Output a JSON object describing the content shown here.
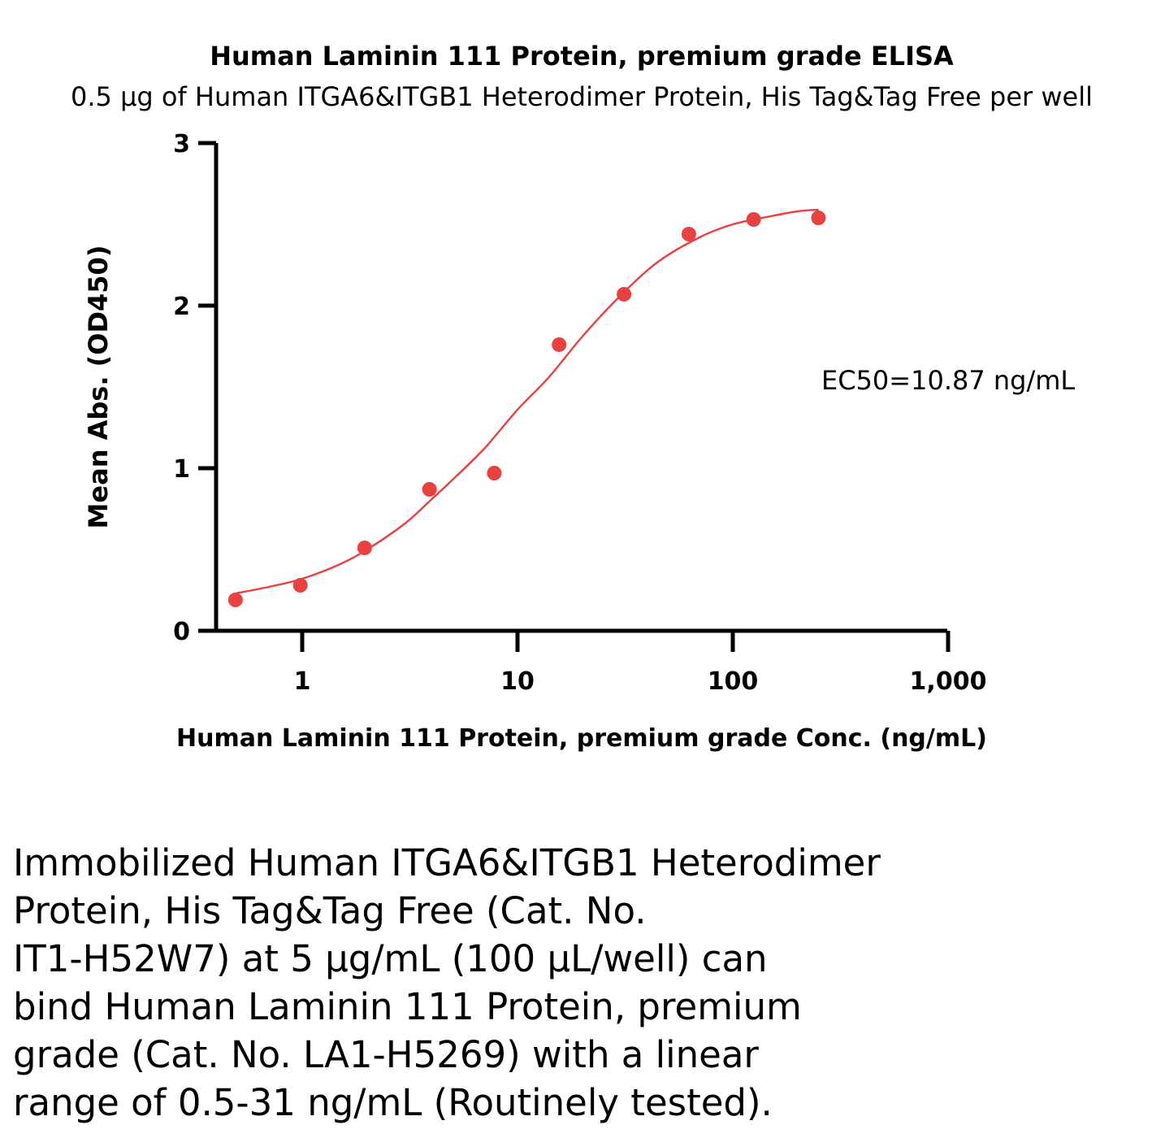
{
  "chart_data": {
    "type": "scatter",
    "title": "Human Laminin 111 Protein, premium grade ELISA",
    "subtitle": "0.5 µg of Human ITGA6&ITGB1 Heterodimer Protein, His Tag&Tag Free per well",
    "xlabel": "Human Laminin 111 Protein, premium grade Conc. (ng/mL)",
    "ylabel": "Mean Abs. (OD450)",
    "x_scale": "log",
    "xlim": [
      0.4,
      1000
    ],
    "ylim": [
      0,
      3
    ],
    "x_ticks": [
      1,
      10,
      100,
      1000
    ],
    "x_tick_labels": [
      "1",
      "10",
      "100",
      "1,000"
    ],
    "y_ticks": [
      0,
      1,
      2,
      3
    ],
    "y_tick_labels": [
      "0",
      "1",
      "2",
      "3"
    ],
    "grid": false,
    "series": [
      {
        "color": "#e8413f",
        "x": [
          0.49,
          0.98,
          1.95,
          3.9,
          7.8,
          15.6,
          31.25,
          62.5,
          125,
          250
        ],
        "y": [
          0.19,
          0.28,
          0.51,
          0.87,
          0.97,
          1.76,
          2.07,
          2.44,
          2.53,
          2.54
        ]
      }
    ],
    "fit_curve": {
      "color": "#e8413f",
      "x": [
        0.49,
        0.7,
        1,
        1.5,
        2,
        3,
        4,
        5,
        7,
        10,
        14,
        20,
        30,
        45,
        70,
        100,
        150,
        200,
        250
      ],
      "y": [
        0.23,
        0.27,
        0.32,
        0.41,
        0.5,
        0.66,
        0.81,
        0.93,
        1.12,
        1.36,
        1.56,
        1.81,
        2.06,
        2.27,
        2.42,
        2.5,
        2.55,
        2.58,
        2.59
      ]
    },
    "annotation": "EC50=10.87 ng/mL"
  },
  "caption_lines": [
    "Immobilized Human ITGA6&ITGB1 Heterodimer",
    "Protein, His Tag&Tag Free (Cat. No.",
    "IT1-H52W7) at 5 µg/mL (100 µL/well) can",
    "bind Human Laminin 111 Protein, premium",
    "grade (Cat. No. LA1-H5269) with a linear",
    "range of 0.5-31 ng/mL (Routinely tested)."
  ]
}
